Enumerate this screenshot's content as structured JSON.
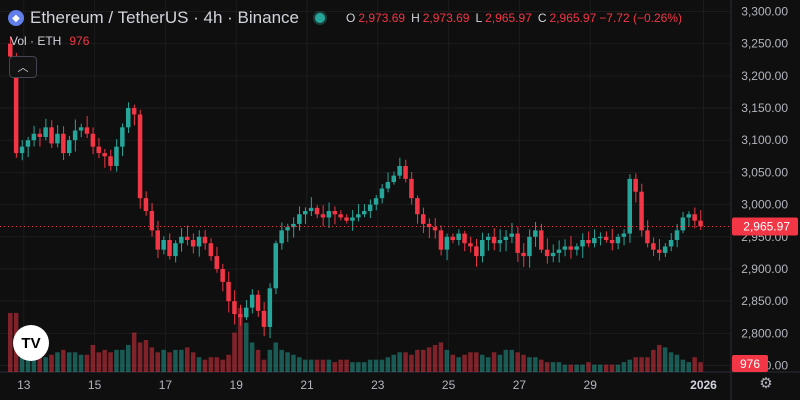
{
  "header": {
    "symbol": "Ethereum / TetherUS · 4h · Binance",
    "icon": "ethereum-icon",
    "ohlc": {
      "o_label": "O",
      "o": "2,973.69",
      "h_label": "H",
      "h": "2,973.69",
      "l_label": "L",
      "l": "2,965.97",
      "c_label": "C",
      "c": "2,965.97",
      "change": "−7.72 (−0.26%)"
    },
    "volume_label": "Vol · ETH",
    "volume_value": "976"
  },
  "colors": {
    "up": "#26a69a",
    "down": "#f23645",
    "background": "#0f0f0f",
    "grid": "#1c1c1c"
  },
  "logo_text": "TV",
  "settings_icon": "gear-icon",
  "collapse_icon": "chevron-up-icon",
  "chart_data": {
    "type": "candlestick",
    "y_ticks": [
      "3,300.00",
      "3,250.00",
      "3,200.00",
      "3,150.00",
      "3,100.00",
      "3,050.00",
      "3,000.00",
      "2,950.00",
      "2,900.00",
      "2,850.00",
      "2,800.00",
      "2,750.00"
    ],
    "x_ticks": [
      "13",
      "15",
      "17",
      "19",
      "21",
      "23",
      "25",
      "27",
      "29",
      "2026"
    ],
    "last_price_label": "2,965.97",
    "volume_label_value": "976",
    "ylim": [
      2740,
      3310
    ],
    "close_path": [
      3230,
      3080,
      3090,
      3100,
      3110,
      3105,
      3120,
      3095,
      3110,
      3080,
      3100,
      3115,
      3120,
      3110,
      3090,
      3080,
      3075,
      3060,
      3090,
      3120,
      3150,
      3140,
      3010,
      2990,
      2960,
      2930,
      2945,
      2920,
      2940,
      2950,
      2945,
      2935,
      2950,
      2940,
      2920,
      2900,
      2880,
      2850,
      2830,
      2825,
      2840,
      2860,
      2835,
      2810,
      2870,
      2940,
      2960,
      2965,
      2970,
      2985,
      2990,
      2995,
      2985,
      2980,
      2990,
      2985,
      2980,
      2975,
      2980,
      2985,
      2990,
      3000,
      3010,
      3025,
      3035,
      3045,
      3060,
      3040,
      3010,
      2985,
      2970,
      2965,
      2960,
      2930,
      2950,
      2945,
      2955,
      2940,
      2935,
      2920,
      2945,
      2950,
      2940,
      2945,
      2950,
      2955,
      2925,
      2920,
      2950,
      2960,
      2930,
      2920,
      2925,
      2930,
      2935,
      2930,
      2935,
      2945,
      2940,
      2948,
      2950,
      2945,
      2940,
      2950,
      2955,
      3040,
      3020,
      2960,
      2940,
      2930,
      2925,
      2935,
      2945,
      2960,
      2980,
      2985,
      2975,
      2966
    ],
    "volumes": [
      24,
      24,
      18,
      12,
      10,
      8,
      6,
      7,
      8,
      9,
      8,
      8,
      7,
      7,
      11,
      8,
      9,
      8,
      9,
      9,
      11,
      16,
      12,
      13,
      10,
      8,
      9,
      8,
      9,
      9,
      10,
      8,
      6,
      5,
      6,
      6,
      5,
      7,
      16,
      26,
      20,
      12,
      9,
      5,
      9,
      12,
      9,
      8,
      7,
      6,
      5,
      5,
      5,
      5,
      5,
      4,
      5,
      5,
      4,
      4,
      4,
      5,
      5,
      5,
      6,
      7,
      8,
      8,
      7,
      9,
      9,
      10,
      11,
      12,
      9,
      7,
      6,
      7,
      8,
      8,
      7,
      6,
      8,
      7,
      9,
      9,
      8,
      7,
      6,
      6,
      5,
      4,
      4,
      4,
      3,
      3,
      3,
      3,
      4,
      3,
      3,
      3,
      3,
      3,
      4,
      5,
      6,
      6,
      6,
      9,
      11,
      10,
      8,
      7,
      5,
      4,
      6,
      4
    ]
  }
}
